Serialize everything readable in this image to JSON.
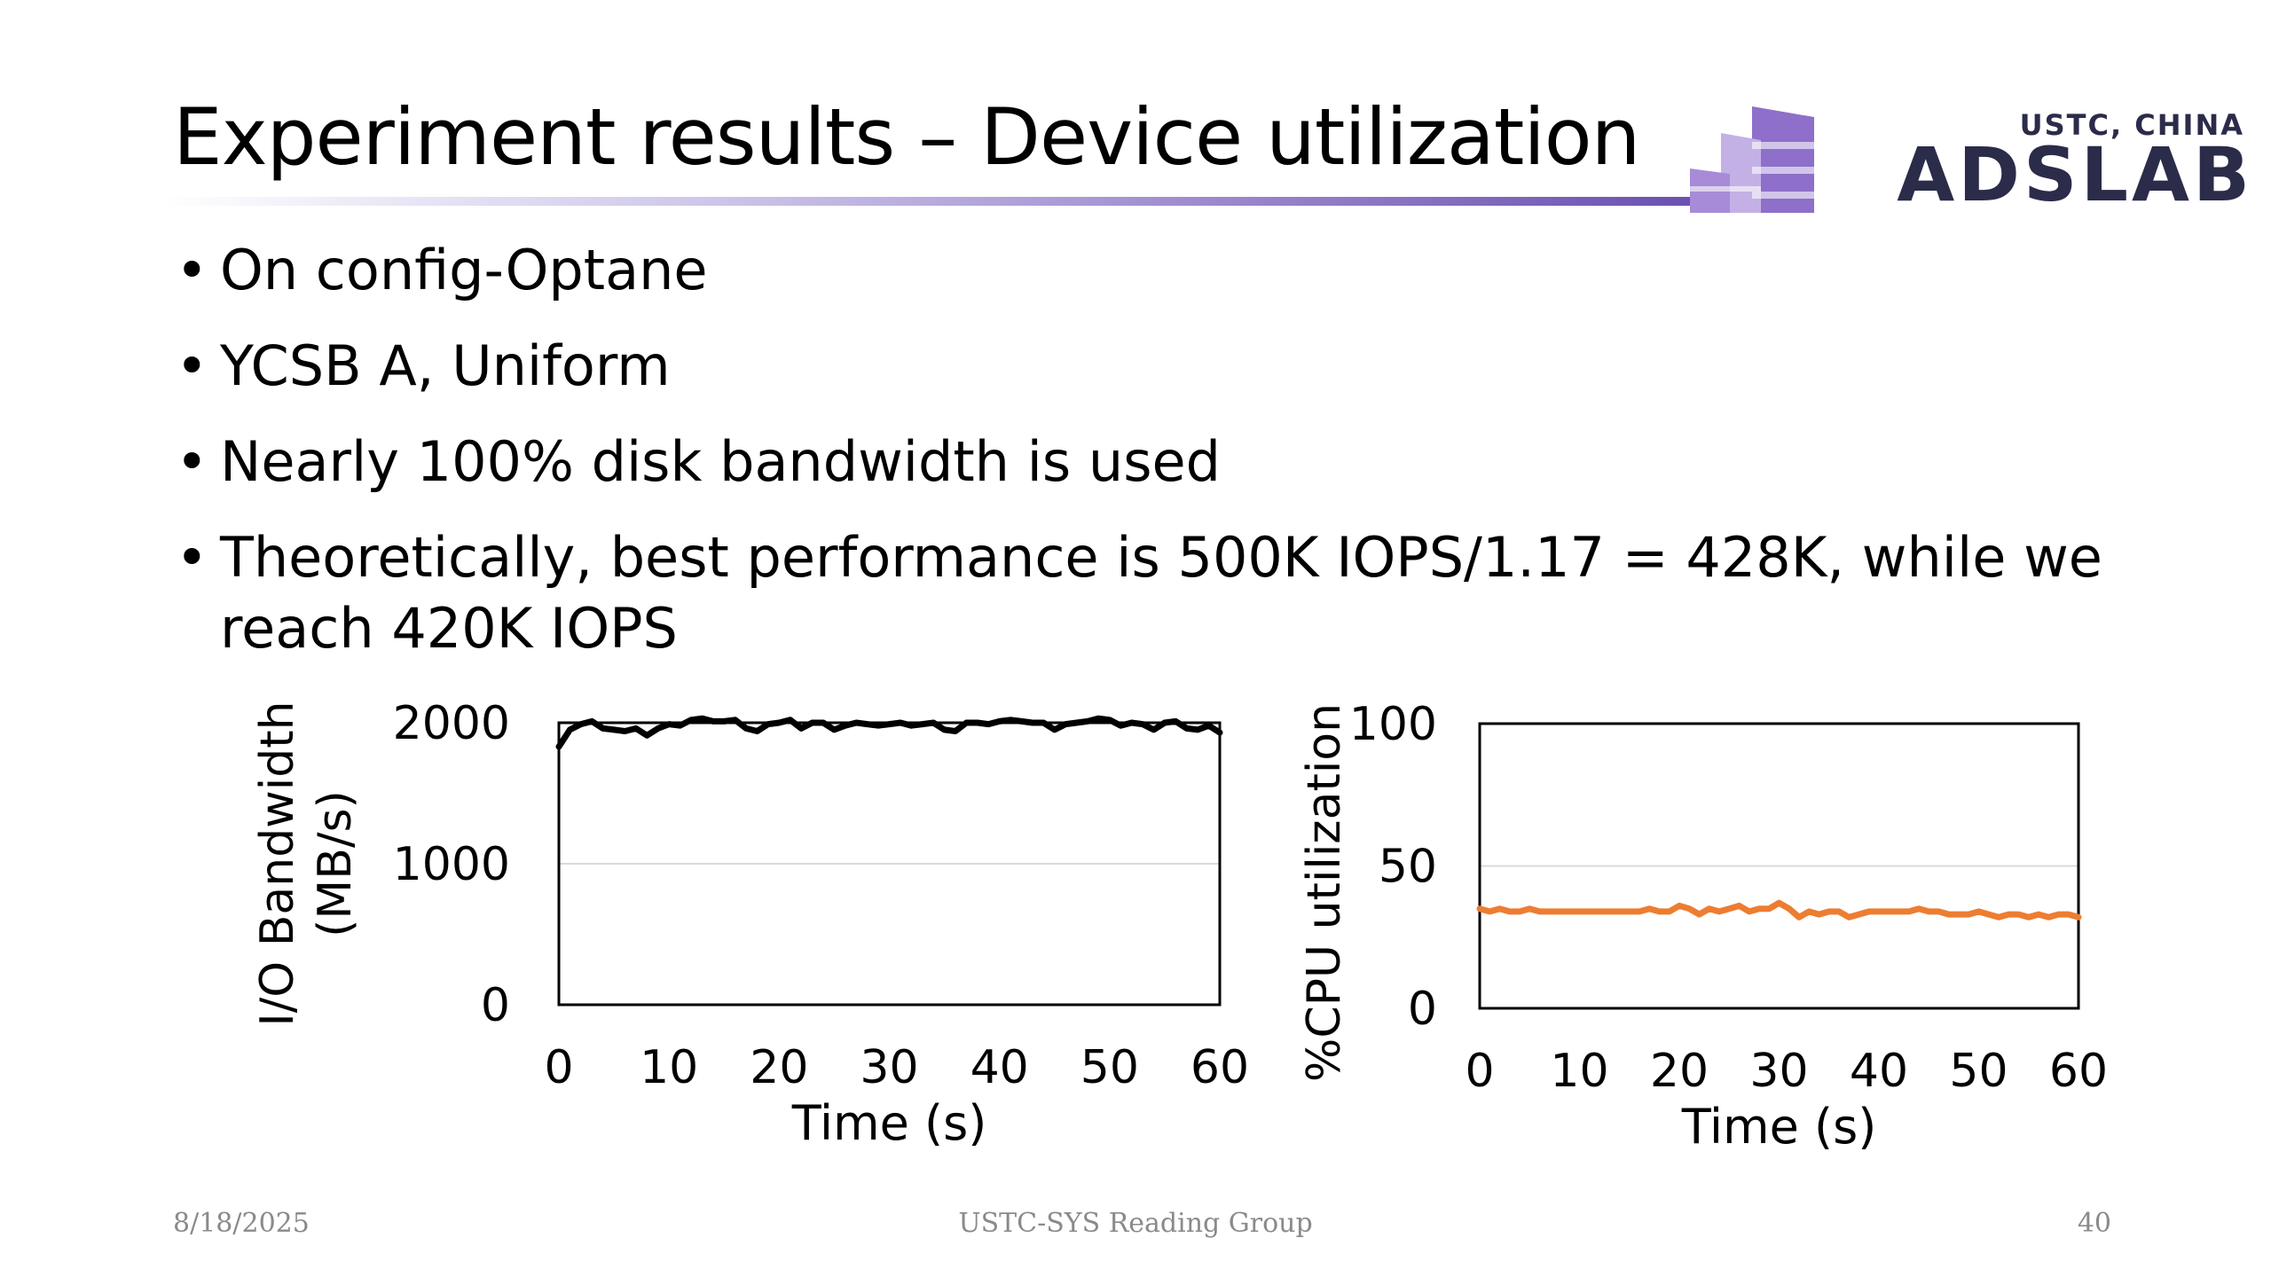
{
  "slide": {
    "title": "Experiment results – Device utilization",
    "bullets": [
      "On config-Optane",
      "YCSB A, Uniform",
      "Nearly 100% disk bandwidth is used",
      "Theoretically, best performance is 500K IOPS/1.17 = 428K, while we reach 420K IOPS"
    ],
    "footer": {
      "date": "8/18/2025",
      "center": "USTC-SYS Reading Group",
      "page": "40"
    }
  },
  "logo": {
    "top_text": "USTC, CHINA",
    "main_text": "ADSLAB",
    "colors": {
      "dark": "#2b2b4a",
      "purple": "#8e6fc9",
      "light_purple": "#c3b1e6"
    }
  },
  "chart_data": [
    {
      "type": "line",
      "ylabel_line1": "I/O Bandwidth",
      "ylabel_line2": "(MB/s)",
      "xlabel": "Time (s)",
      "xlim": [
        0,
        60
      ],
      "ylim": [
        0,
        2000
      ],
      "xticks": [
        0,
        10,
        20,
        30,
        40,
        50,
        60
      ],
      "yticks": [
        0,
        1000,
        2000
      ],
      "grid": "horizontal",
      "color": "#000000",
      "series": [
        {
          "x": [
            0,
            1,
            2,
            3,
            4,
            5,
            6,
            7,
            8,
            9,
            10,
            11,
            12,
            13,
            14,
            15,
            16,
            17,
            18,
            19,
            20,
            21,
            22,
            23,
            24,
            25,
            26,
            27,
            28,
            29,
            30,
            31,
            32,
            33,
            34,
            35,
            36,
            37,
            38,
            39,
            40,
            41,
            42,
            43,
            44,
            45,
            46,
            47,
            48,
            49,
            50,
            51,
            52,
            53,
            54,
            55,
            56,
            57,
            58,
            59,
            60
          ],
          "values": [
            1830,
            1950,
            1990,
            2010,
            1960,
            1950,
            1940,
            1960,
            1910,
            1960,
            1990,
            1980,
            2020,
            2030,
            2010,
            2010,
            2020,
            1960,
            1940,
            1990,
            2000,
            2020,
            1960,
            2000,
            2000,
            1950,
            1980,
            2000,
            1990,
            1980,
            1990,
            2000,
            1980,
            1990,
            2000,
            1950,
            1940,
            2000,
            2000,
            1990,
            2010,
            2020,
            2010,
            2000,
            2000,
            1950,
            1990,
            2000,
            2010,
            2030,
            2020,
            1980,
            2000,
            1990,
            1950,
            2000,
            2010,
            1960,
            1950,
            1980,
            1930
          ]
        }
      ]
    },
    {
      "type": "line",
      "ylabel": "%CPU utilization",
      "xlabel": "Time (s)",
      "xlim": [
        0,
        60
      ],
      "ylim": [
        0,
        100
      ],
      "xticks": [
        0,
        10,
        20,
        30,
        40,
        50,
        60
      ],
      "yticks": [
        0,
        50,
        100
      ],
      "grid": "horizontal",
      "color": "#ed7d31",
      "series": [
        {
          "x": [
            0,
            1,
            2,
            3,
            4,
            5,
            6,
            7,
            8,
            9,
            10,
            11,
            12,
            13,
            14,
            15,
            16,
            17,
            18,
            19,
            20,
            21,
            22,
            23,
            24,
            25,
            26,
            27,
            28,
            29,
            30,
            31,
            32,
            33,
            34,
            35,
            36,
            37,
            38,
            39,
            40,
            41,
            42,
            43,
            44,
            45,
            46,
            47,
            48,
            49,
            50,
            51,
            52,
            53,
            54,
            55,
            56,
            57,
            58,
            59,
            60
          ],
          "values": [
            35,
            34,
            35,
            34,
            34,
            35,
            34,
            34,
            34,
            34,
            34,
            34,
            34,
            34,
            34,
            34,
            34,
            35,
            34,
            34,
            36,
            35,
            33,
            35,
            34,
            35,
            36,
            34,
            35,
            35,
            37,
            35,
            32,
            34,
            33,
            34,
            34,
            32,
            33,
            34,
            34,
            34,
            34,
            34,
            35,
            34,
            34,
            33,
            33,
            33,
            34,
            33,
            32,
            33,
            33,
            32,
            33,
            32,
            33,
            33,
            32
          ]
        }
      ]
    }
  ]
}
